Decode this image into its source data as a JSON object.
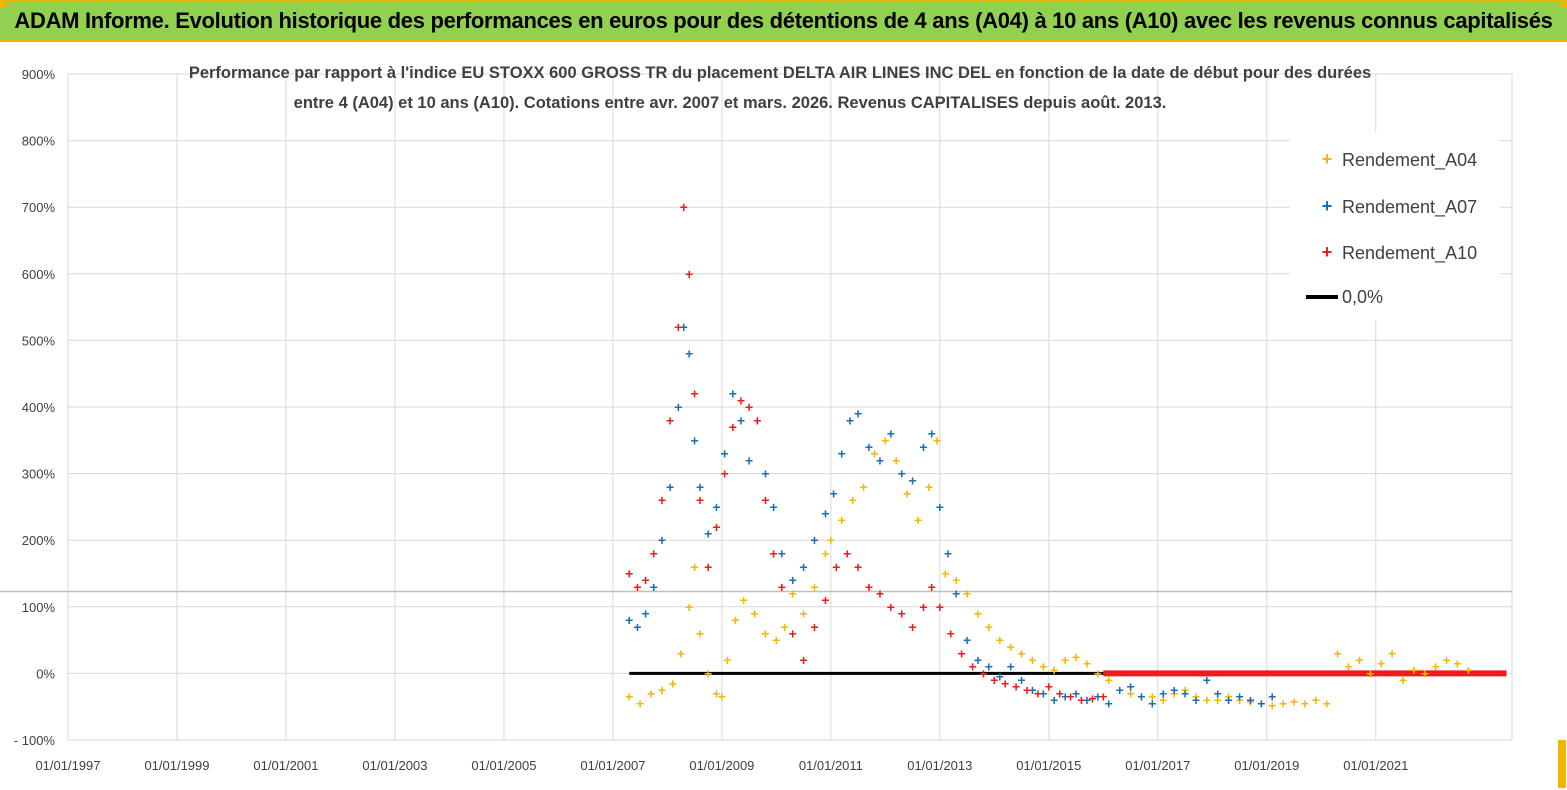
{
  "header": {
    "title": "ADAM Informe. Evolution historique des performances en euros pour des détentions de 4 ans (A04) à 10 ans (A10) avec les revenus connus capitalisés"
  },
  "chart_data": {
    "type": "scatter",
    "title_line1": "Performance par rapport à l'indice EU STOXX 600 GROSS TR  du placement DELTA AIR LINES INC DEL en fonction de la date de début pour des durées",
    "title_line2": "entre 4 (A04) et 10 ans (A10). Cotations entre avr. 2007 et mars. 2026. Revenus CAPITALISES depuis août. 2013.",
    "xlabel": "",
    "ylabel": "",
    "xlim": [
      1997.0,
      2023.5
    ],
    "ylim": [
      -100,
      900
    ],
    "x_tick_labels": [
      "01/01/1997",
      "01/01/1999",
      "01/01/2001",
      "01/01/2003",
      "01/01/2005",
      "01/01/2007",
      "01/01/2009",
      "01/01/2011",
      "01/01/2013",
      "01/01/2015",
      "01/01/2017",
      "01/01/2019",
      "01/01/2021"
    ],
    "x_ticks": [
      1997,
      1999,
      2001,
      2003,
      2005,
      2007,
      2009,
      2011,
      2013,
      2015,
      2017,
      2019,
      2021
    ],
    "y_tick_labels": [
      "- 100%",
      "0%",
      "100%",
      "200%",
      "300%",
      "400%",
      "500%",
      "600%",
      "700%",
      "800%",
      "900%"
    ],
    "y_ticks": [
      -100,
      0,
      100,
      200,
      300,
      400,
      500,
      600,
      700,
      800,
      900
    ],
    "reference_hline": 123,
    "legend_position": "top-right",
    "series": [
      {
        "name": "Rendement_A04",
        "color": "#f5b800",
        "marker": "+",
        "x": [
          2007.3,
          2007.5,
          2007.7,
          2007.9,
          2008.1,
          2008.25,
          2008.4,
          2008.5,
          2008.6,
          2008.75,
          2008.9,
          2009.0,
          2009.1,
          2009.25,
          2009.4,
          2009.6,
          2009.8,
          2010.0,
          2010.15,
          2010.3,
          2010.5,
          2010.7,
          2010.9,
          2011.0,
          2011.2,
          2011.4,
          2011.6,
          2011.8,
          2012.0,
          2012.2,
          2012.4,
          2012.6,
          2012.8,
          2012.95,
          2013.1,
          2013.3,
          2013.5,
          2013.7,
          2013.9,
          2014.1,
          2014.3,
          2014.5,
          2014.7,
          2014.9,
          2015.1,
          2015.3,
          2015.5,
          2015.7,
          2015.9,
          2016.1,
          2016.3,
          2016.5,
          2016.7,
          2016.9,
          2017.1,
          2017.3,
          2017.5,
          2017.7,
          2017.9,
          2018.1,
          2018.3,
          2018.5,
          2018.7,
          2018.9,
          2019.1,
          2019.3,
          2019.5,
          2019.7,
          2019.9,
          2020.1,
          2020.3,
          2020.5,
          2020.7,
          2020.9,
          2021.1,
          2021.3,
          2021.5,
          2021.7,
          2021.9,
          2022.1,
          2022.3,
          2022.5,
          2022.7
        ],
        "y": [
          -35,
          -45,
          -30,
          -25,
          -15,
          30,
          100,
          160,
          60,
          0,
          -30,
          -35,
          20,
          80,
          110,
          90,
          60,
          50,
          70,
          120,
          90,
          130,
          180,
          200,
          230,
          260,
          280,
          330,
          350,
          320,
          270,
          230,
          280,
          350,
          150,
          140,
          120,
          90,
          70,
          50,
          40,
          30,
          20,
          10,
          5,
          20,
          25,
          15,
          0,
          -10,
          -25,
          -30,
          -35,
          -35,
          -40,
          -30,
          -25,
          -35,
          -40,
          -40,
          -35,
          -40,
          -42,
          -45,
          -48,
          -45,
          -42,
          -45,
          -40,
          -45,
          30,
          10,
          20,
          0,
          15,
          30,
          -10,
          5,
          0,
          10,
          20,
          15,
          5
        ]
      },
      {
        "name": "Rendement_A07",
        "color": "#1a70b8",
        "marker": "+",
        "x": [
          2007.3,
          2007.45,
          2007.6,
          2007.75,
          2007.9,
          2008.05,
          2008.2,
          2008.3,
          2008.4,
          2008.5,
          2008.6,
          2008.75,
          2008.9,
          2009.05,
          2009.2,
          2009.35,
          2009.5,
          2009.65,
          2009.8,
          2009.95,
          2010.1,
          2010.3,
          2010.5,
          2010.7,
          2010.9,
          2011.05,
          2011.2,
          2011.35,
          2011.5,
          2011.7,
          2011.9,
          2012.1,
          2012.3,
          2012.5,
          2012.7,
          2012.85,
          2013.0,
          2013.15,
          2013.3,
          2013.5,
          2013.7,
          2013.9,
          2014.1,
          2014.3,
          2014.5,
          2014.7,
          2014.9,
          2015.1,
          2015.3,
          2015.5,
          2015.7,
          2015.9,
          2016.1,
          2016.3,
          2016.5,
          2016.7,
          2016.9,
          2017.1,
          2017.3,
          2017.5,
          2017.7,
          2017.9,
          2018.1,
          2018.3,
          2018.5,
          2018.7,
          2018.9,
          2019.1
        ],
        "y": [
          80,
          70,
          90,
          130,
          200,
          280,
          400,
          520,
          480,
          350,
          280,
          210,
          250,
          330,
          420,
          380,
          320,
          380,
          300,
          250,
          180,
          140,
          160,
          200,
          240,
          270,
          330,
          380,
          390,
          340,
          320,
          360,
          300,
          290,
          340,
          360,
          250,
          180,
          120,
          50,
          20,
          10,
          -5,
          10,
          -10,
          -25,
          -30,
          -40,
          -35,
          -30,
          -40,
          -35,
          -45,
          -25,
          -20,
          -35,
          -45,
          -30,
          -25,
          -30,
          -40,
          -10,
          -30,
          -40,
          -35,
          -40,
          -45,
          -35
        ]
      },
      {
        "name": "Rendement_A10",
        "color": "#ee1c1c",
        "marker": "+",
        "x": [
          2007.3,
          2007.45,
          2007.6,
          2007.75,
          2007.9,
          2008.05,
          2008.2,
          2008.3,
          2008.4,
          2008.5,
          2008.6,
          2008.75,
          2008.9,
          2009.05,
          2009.2,
          2009.35,
          2009.5,
          2009.65,
          2009.8,
          2009.95,
          2010.1,
          2010.3,
          2010.5,
          2010.7,
          2010.9,
          2011.1,
          2011.3,
          2011.5,
          2011.7,
          2011.9,
          2012.1,
          2012.3,
          2012.5,
          2012.7,
          2012.85,
          2013.0,
          2013.2,
          2013.4,
          2013.6,
          2013.8,
          2014.0,
          2014.2,
          2014.4,
          2014.6,
          2014.8,
          2015.0,
          2015.2,
          2015.4,
          2015.6,
          2015.8,
          2016.0
        ],
        "y": [
          150,
          130,
          140,
          180,
          260,
          380,
          520,
          700,
          600,
          420,
          260,
          160,
          220,
          300,
          370,
          410,
          400,
          380,
          260,
          180,
          130,
          60,
          20,
          70,
          110,
          160,
          180,
          160,
          130,
          120,
          100,
          90,
          70,
          100,
          130,
          100,
          60,
          30,
          10,
          0,
          -10,
          -15,
          -20,
          -25,
          -30,
          -20,
          -30,
          -35,
          -40,
          -38,
          -35
        ]
      },
      {
        "name": "0,0%",
        "color": "#000000",
        "marker": "line",
        "x": [
          2007.3,
          2016.0
        ],
        "y": [
          0,
          0
        ]
      }
    ],
    "flat_segment": {
      "name": "Rendement_A10 (dernières valeurs)",
      "color": "#ee1c1c",
      "x": [
        2016.0,
        2023.4
      ],
      "y": [
        0,
        0
      ]
    }
  }
}
